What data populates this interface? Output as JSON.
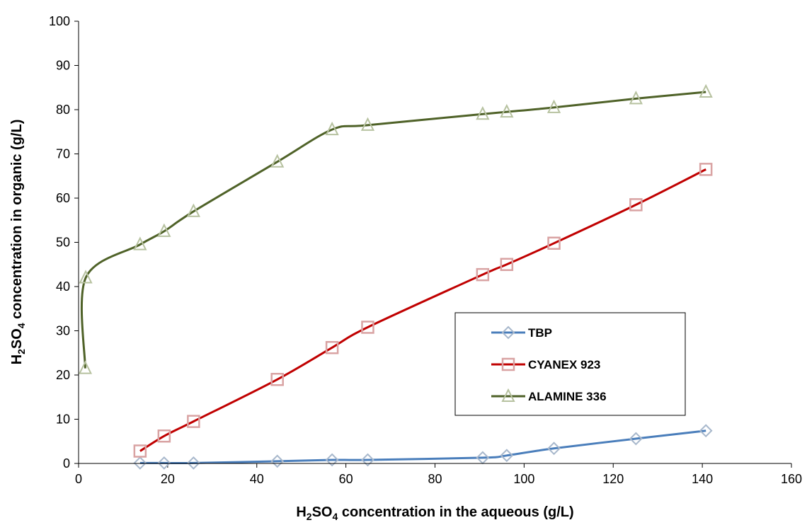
{
  "chart_data": {
    "type": "line",
    "xlim": [
      0,
      160
    ],
    "ylim": [
      0,
      100
    ],
    "x_ticks": [
      0,
      20,
      40,
      60,
      80,
      100,
      120,
      140,
      160
    ],
    "y_ticks": [
      0,
      10,
      20,
      30,
      40,
      50,
      60,
      70,
      80,
      90,
      100
    ],
    "xlabel": {
      "prefix": "H",
      "sub1": "2",
      "mid": "SO",
      "sub2": "4",
      "suffix": " concentration  in the aqueous (g/L)"
    },
    "ylabel": {
      "prefix": "H",
      "sub1": "2",
      "mid": "SO",
      "sub2": "4",
      "suffix": " concentration  in organic  (g/L)"
    },
    "grid": false,
    "legend_position": "middle-right",
    "series": [
      {
        "name": "TBP",
        "marker": "diamond",
        "line_color": "#4a7ebb",
        "marker_color": "#a8b8cc",
        "points": [
          [
            13.8,
            0.1
          ],
          [
            19.2,
            0.1
          ],
          [
            25.8,
            0.1
          ],
          [
            44.6,
            0.5
          ],
          [
            56.9,
            0.8
          ],
          [
            64.9,
            0.8
          ],
          [
            90.7,
            1.3
          ],
          [
            96.1,
            1.8
          ],
          [
            106.7,
            3.4
          ],
          [
            125.1,
            5.6
          ],
          [
            140.8,
            7.4
          ]
        ]
      },
      {
        "name": "CYANEX 923",
        "marker": "square",
        "line_color": "#c00000",
        "marker_color": "#d9a3a3",
        "points": [
          [
            13.8,
            2.8
          ],
          [
            19.2,
            6.2
          ],
          [
            25.8,
            9.5
          ],
          [
            44.6,
            19.0
          ],
          [
            56.9,
            26.2
          ],
          [
            64.9,
            30.8
          ],
          [
            90.7,
            42.7
          ],
          [
            96.1,
            45.0
          ],
          [
            106.7,
            49.8
          ],
          [
            125.1,
            58.5
          ],
          [
            140.8,
            66.5
          ]
        ]
      },
      {
        "name": "ALAMINE 336",
        "marker": "triangle",
        "line_color": "#4f6228",
        "marker_color": "#b7c2a0",
        "points": [
          [
            1.5,
            21.5
          ],
          [
            1.6,
            42.0
          ],
          [
            13.8,
            49.5
          ],
          [
            19.2,
            52.5
          ],
          [
            25.8,
            57.0
          ],
          [
            44.6,
            68.2
          ],
          [
            56.9,
            75.5
          ],
          [
            64.9,
            76.5
          ],
          [
            90.7,
            79.0
          ],
          [
            96.1,
            79.5
          ],
          [
            106.7,
            80.5
          ],
          [
            125.1,
            82.5
          ],
          [
            140.8,
            84.0
          ]
        ]
      }
    ]
  }
}
